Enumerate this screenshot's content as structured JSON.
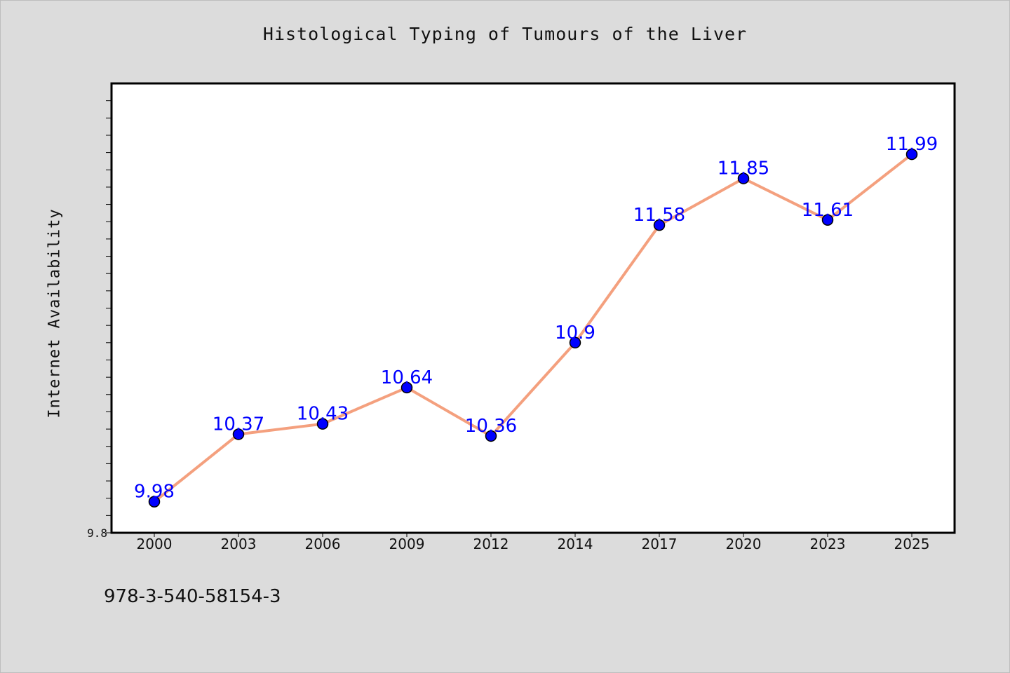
{
  "chart_data": {
    "type": "line",
    "title": "Histological Typing of Tumours of the Liver",
    "xlabel": "",
    "ylabel": "Internet Availability",
    "categories": [
      "2000",
      "2003",
      "2006",
      "2009",
      "2012",
      "2014",
      "2017",
      "2020",
      "2023",
      "2025"
    ],
    "series": [
      {
        "values": [
          9.98,
          10.37,
          10.43,
          10.64,
          10.36,
          10.9,
          11.58,
          11.85,
          11.61,
          11.99
        ],
        "data_labels": [
          "9.98",
          "10.37",
          "10.43",
          "10.64",
          "10.36",
          "10.9",
          "11.58",
          "11.85",
          "11.61",
          "11.99"
        ]
      }
    ],
    "ylim": [
      9.8,
      12.4
    ],
    "ytick_labels": [
      "9.8"
    ],
    "grid": false,
    "line_color": "#f4a07e",
    "marker_color": "#0000ff",
    "label_color": "#0000ff"
  },
  "footer": {
    "isbn": "978-3-540-58154-3"
  }
}
